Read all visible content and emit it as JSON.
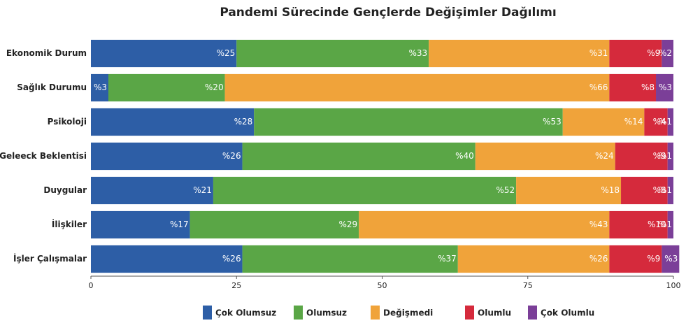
{
  "chart_data": {
    "type": "stacked_bar_horizontal",
    "title": "Pandemi Sürecinde Gençlerde Değişimler Dağılımı",
    "categories": [
      "Ekonomik Durum",
      "Sağlık Durumu",
      "Psikoloji",
      "Geleeck Beklentisi",
      "Duygular",
      "İlişkiler",
      "İşler Çalışmalar"
    ],
    "series": [
      {
        "name": "Çok Olumsuz",
        "color": "#2d5ea6",
        "values": [
          25,
          3,
          28,
          26,
          21,
          17,
          26
        ],
        "value_labels": [
          "%25",
          "%3",
          "%28",
          "%26",
          "%21",
          "%17",
          "%26"
        ]
      },
      {
        "name": "Olumsuz",
        "color": "#5aa646",
        "values": [
          33,
          20,
          53,
          40,
          52,
          29,
          37
        ],
        "value_labels": [
          "%33",
          "%20",
          "%53",
          "%40",
          "%52",
          "%29",
          "%37"
        ]
      },
      {
        "name": "Değişmedi",
        "color": "#f0a33a",
        "values": [
          31,
          66,
          14,
          24,
          18,
          43,
          26
        ],
        "value_labels": [
          "%31",
          "%66",
          "%14",
          "%24",
          "%18",
          "%43",
          "%26"
        ]
      },
      {
        "name": "Olumlu",
        "color": "#d52a3c",
        "values": [
          9,
          8,
          4,
          9,
          8,
          10,
          9
        ],
        "value_labels": [
          "%9",
          "%8",
          "%4",
          "%9",
          "%8",
          "%10",
          "%9"
        ]
      },
      {
        "name": "Çok Olumlu",
        "color": "#7b3f98",
        "values": [
          2,
          3,
          1,
          1,
          1,
          1,
          3
        ],
        "value_labels": [
          "%2",
          "%3",
          "%1",
          "%1",
          "%1",
          "%1",
          "%3"
        ]
      }
    ],
    "xlim": [
      0,
      100
    ],
    "xticks": [
      0,
      25,
      50,
      75,
      100
    ]
  }
}
